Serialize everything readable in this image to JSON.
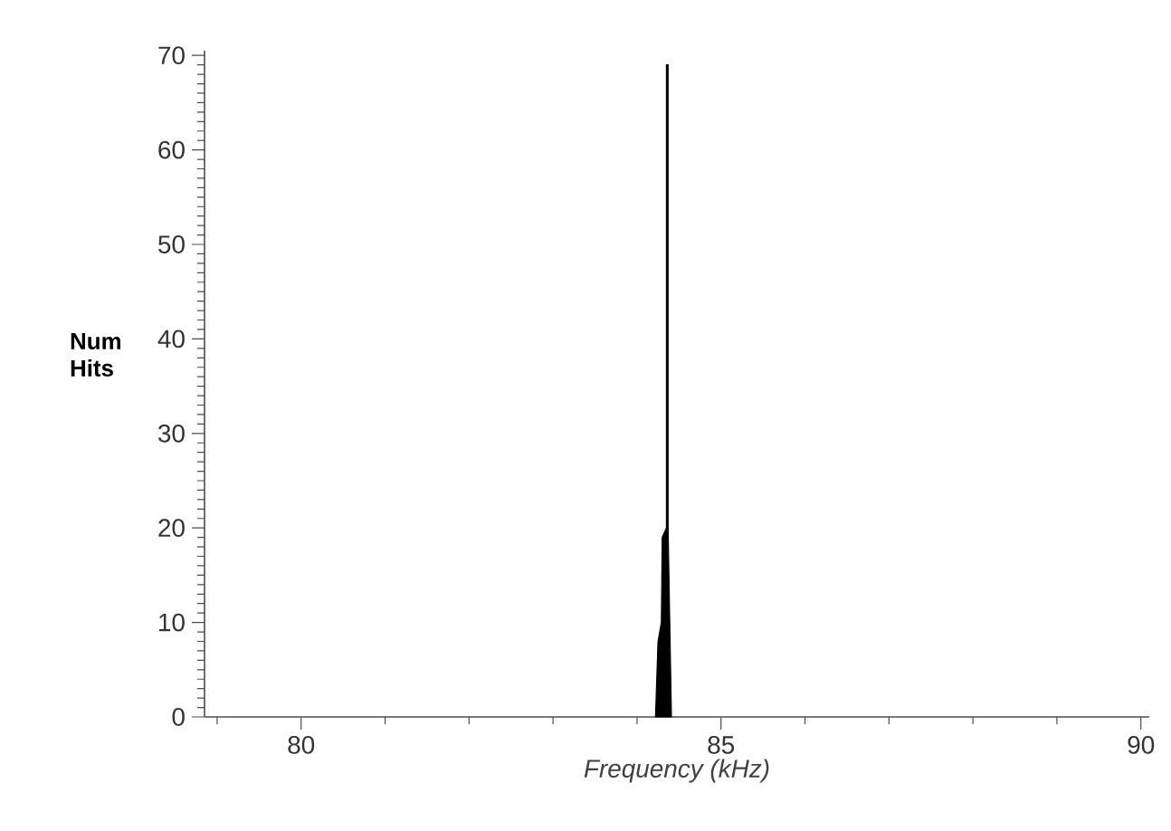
{
  "chart_data": {
    "type": "area",
    "xlabel": "Frequency (kHz)",
    "ylabel": "Num Hits",
    "series": [
      {
        "color": "#000000",
        "x": [
          84.22,
          84.25,
          84.29,
          84.3,
          84.35,
          84.35,
          84.37,
          84.37,
          84.41
        ],
        "values": [
          0,
          8,
          10,
          19,
          20,
          69,
          69,
          20,
          0
        ]
      }
    ],
    "xlim": [
      78.85,
      90.1
    ],
    "ylim": [
      0,
      70.5
    ],
    "xticks": [
      {
        "value": 79,
        "label": null
      },
      80,
      {
        "value": 81,
        "label": null
      },
      {
        "value": 82,
        "label": null
      },
      {
        "value": 83,
        "label": null
      },
      {
        "value": 84,
        "label": null
      },
      85,
      {
        "value": 86,
        "label": null
      },
      {
        "value": 87,
        "label": null
      },
      {
        "value": 88,
        "label": null
      },
      {
        "value": 89,
        "label": null
      },
      90
    ],
    "yticks": [
      0,
      {
        "value": 1,
        "label": null
      },
      {
        "value": 2,
        "label": null
      },
      {
        "value": 3,
        "label": null
      },
      {
        "value": 4,
        "label": null
      },
      {
        "value": 5,
        "label": null
      },
      {
        "value": 6,
        "label": null
      },
      {
        "value": 7,
        "label": null
      },
      {
        "value": 8,
        "label": null
      },
      {
        "value": 9,
        "label": null
      },
      10,
      {
        "value": 11,
        "label": null
      },
      {
        "value": 12,
        "label": null
      },
      {
        "value": 13,
        "label": null
      },
      {
        "value": 14,
        "label": null
      },
      {
        "value": 15,
        "label": null
      },
      {
        "value": 16,
        "label": null
      },
      {
        "value": 17,
        "label": null
      },
      {
        "value": 18,
        "label": null
      },
      {
        "value": 19,
        "label": null
      },
      20,
      {
        "value": 21,
        "label": null
      },
      {
        "value": 22,
        "label": null
      },
      {
        "value": 23,
        "label": null
      },
      {
        "value": 24,
        "label": null
      },
      {
        "value": 25,
        "label": null
      },
      {
        "value": 26,
        "label": null
      },
      {
        "value": 27,
        "label": null
      },
      {
        "value": 28,
        "label": null
      },
      {
        "value": 29,
        "label": null
      },
      30,
      {
        "value": 31,
        "label": null
      },
      {
        "value": 32,
        "label": null
      },
      {
        "value": 33,
        "label": null
      },
      {
        "value": 34,
        "label": null
      },
      {
        "value": 35,
        "label": null
      },
      {
        "value": 36,
        "label": null
      },
      {
        "value": 37,
        "label": null
      },
      {
        "value": 38,
        "label": null
      },
      {
        "value": 39,
        "label": null
      },
      40,
      {
        "value": 41,
        "label": null
      },
      {
        "value": 42,
        "label": null
      },
      {
        "value": 43,
        "label": null
      },
      {
        "value": 44,
        "label": null
      },
      {
        "value": 45,
        "label": null
      },
      {
        "value": 46,
        "label": null
      },
      {
        "value": 47,
        "label": null
      },
      {
        "value": 48,
        "label": null
      },
      {
        "value": 49,
        "label": null
      },
      50,
      {
        "value": 51,
        "label": null
      },
      {
        "value": 52,
        "label": null
      },
      {
        "value": 53,
        "label": null
      },
      {
        "value": 54,
        "label": null
      },
      {
        "value": 55,
        "label": null
      },
      {
        "value": 56,
        "label": null
      },
      {
        "value": 57,
        "label": null
      },
      {
        "value": 58,
        "label": null
      },
      {
        "value": 59,
        "label": null
      },
      60,
      {
        "value": 61,
        "label": null
      },
      {
        "value": 62,
        "label": null
      },
      {
        "value": 63,
        "label": null
      },
      {
        "value": 64,
        "label": null
      },
      {
        "value": 65,
        "label": null
      },
      {
        "value": 66,
        "label": null
      },
      {
        "value": 67,
        "label": null
      },
      {
        "value": 68,
        "label": null
      },
      {
        "value": 69,
        "label": null
      },
      70
    ]
  }
}
